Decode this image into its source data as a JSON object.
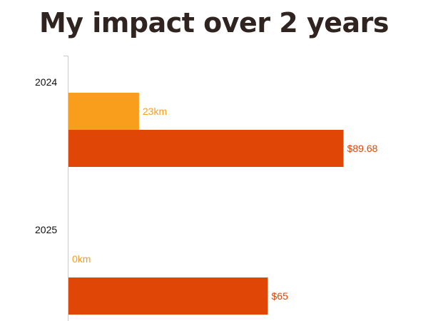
{
  "chart_data": {
    "type": "bar",
    "orientation": "horizontal",
    "title": "My impact over 2 years",
    "categories": [
      "2024",
      "2025"
    ],
    "series": [
      {
        "values": [
          23,
          0
        ],
        "labels": [
          "23km",
          "0km"
        ],
        "unit": "km",
        "color": "#f99d1c"
      },
      {
        "values": [
          89.68,
          65
        ],
        "labels": [
          "$89.68",
          "$65"
        ],
        "unit": "$",
        "color": "#e04606"
      }
    ],
    "grid": false,
    "legend": "none",
    "axis_color": "#cccccc"
  }
}
